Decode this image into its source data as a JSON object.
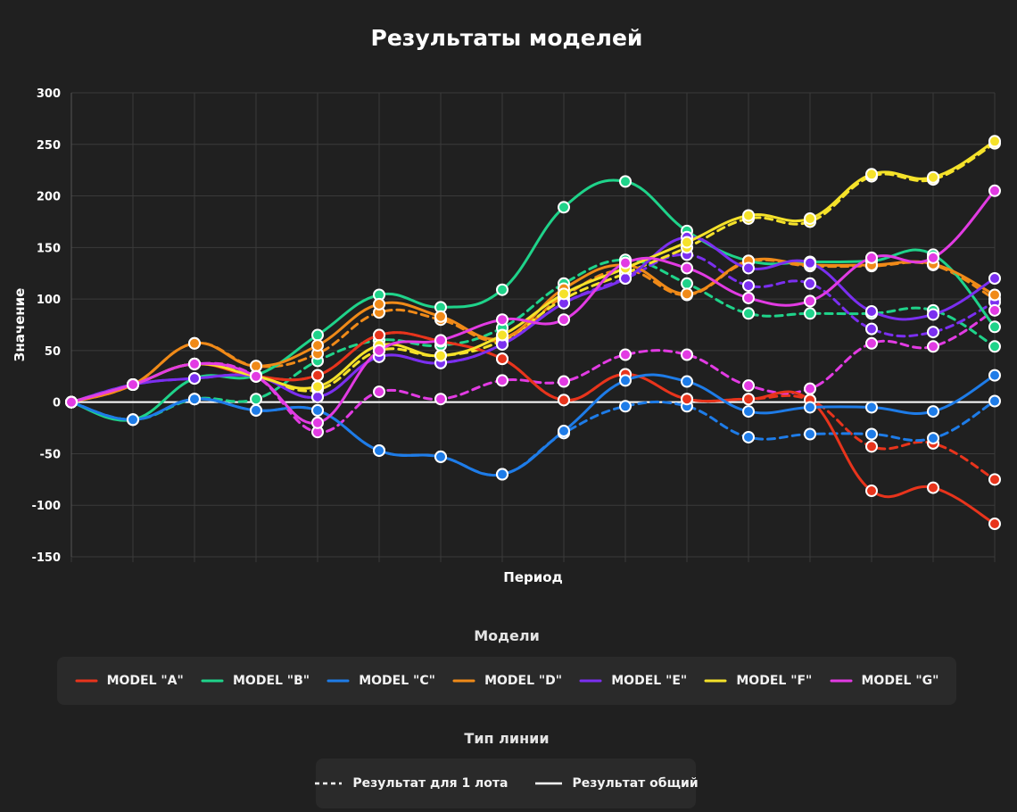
{
  "chart_data": {
    "type": "line",
    "title": "Результаты моделей",
    "xlabel": "Период",
    "ylabel": "Значение",
    "ylim": [
      -150,
      300
    ],
    "yticks": [
      300,
      250,
      200,
      150,
      100,
      50,
      0,
      -50,
      -100,
      -150
    ],
    "x": [
      0,
      1,
      2,
      3,
      4,
      5,
      6,
      7,
      8,
      9,
      10,
      11,
      12,
      13,
      14,
      15
    ],
    "grid": true,
    "series": [
      {
        "name": "MODEL \"A\"",
        "color": "#e8341c",
        "style": "solid",
        "values": [
          0,
          17,
          37,
          25,
          26,
          65,
          59,
          42,
          2,
          27,
          3,
          3,
          2,
          -86,
          -83,
          -118
        ]
      },
      {
        "name": "MODEL \"A\"",
        "color": "#e8341c",
        "style": "dashed",
        "values": [
          0,
          17,
          37,
          25,
          26,
          65,
          59,
          42,
          2,
          27,
          3,
          3,
          2,
          -43,
          -40,
          -75
        ]
      },
      {
        "name": "MODEL \"B\"",
        "color": "#1fd38a",
        "style": "solid",
        "values": [
          0,
          -17,
          23,
          26,
          65,
          104,
          92,
          109,
          189,
          214,
          166,
          137,
          136,
          137,
          143,
          73
        ]
      },
      {
        "name": "MODEL \"B\"",
        "color": "#1fd38a",
        "style": "dashed",
        "values": [
          0,
          -17,
          3,
          3,
          40,
          60,
          55,
          72,
          115,
          138,
          115,
          86,
          86,
          86,
          89,
          54
        ]
      },
      {
        "name": "MODEL \"C\"",
        "color": "#1e7ce8",
        "style": "solid",
        "values": [
          0,
          -17,
          3,
          -8,
          -8,
          -47,
          -53,
          -70,
          -28,
          21,
          20,
          -9,
          -5,
          -5,
          -9,
          26
        ]
      },
      {
        "name": "MODEL \"C\"",
        "color": "#1e7ce8",
        "style": "dashed",
        "values": [
          0,
          -17,
          3,
          -8,
          -8,
          -47,
          -53,
          -70,
          -30,
          -4,
          -4,
          -34,
          -31,
          -31,
          -35,
          1
        ]
      },
      {
        "name": "MODEL \"D\"",
        "color": "#f08a18",
        "style": "solid",
        "values": [
          0,
          17,
          57,
          35,
          55,
          95,
          83,
          62,
          110,
          133,
          105,
          137,
          133,
          133,
          134,
          104
        ]
      },
      {
        "name": "MODEL \"D\"",
        "color": "#f08a18",
        "style": "dashed",
        "values": [
          0,
          17,
          57,
          35,
          47,
          87,
          80,
          60,
          103,
          128,
          104,
          136,
          132,
          132,
          133,
          100
        ]
      },
      {
        "name": "MODEL \"E\"",
        "color": "#7b2ff0",
        "style": "solid",
        "values": [
          0,
          17,
          23,
          25,
          5,
          44,
          38,
          56,
          96,
          120,
          160,
          130,
          135,
          88,
          85,
          120
        ]
      },
      {
        "name": "MODEL \"E\"",
        "color": "#7b2ff0",
        "style": "dashed",
        "values": [
          0,
          17,
          23,
          25,
          5,
          44,
          38,
          56,
          96,
          120,
          143,
          113,
          115,
          71,
          68,
          97
        ]
      },
      {
        "name": "MODEL \"F\"",
        "color": "#f5e22a",
        "style": "solid",
        "values": [
          0,
          17,
          37,
          25,
          15,
          55,
          45,
          65,
          105,
          130,
          155,
          181,
          178,
          221,
          218,
          253
        ]
      },
      {
        "name": "MODEL \"F\"",
        "color": "#f5e22a",
        "style": "dashed",
        "values": [
          0,
          17,
          37,
          25,
          12,
          50,
          45,
          60,
          100,
          125,
          150,
          178,
          175,
          219,
          216,
          251
        ]
      },
      {
        "name": "MODEL \"G\"",
        "color": "#e23be3",
        "style": "solid",
        "values": [
          0,
          17,
          37,
          25,
          -20,
          50,
          60,
          80,
          80,
          135,
          130,
          101,
          98,
          140,
          140,
          205
        ]
      },
      {
        "name": "MODEL \"G\"",
        "color": "#e23be3",
        "style": "dashed",
        "values": [
          0,
          17,
          37,
          25,
          -29,
          10,
          3,
          21,
          20,
          46,
          46,
          16,
          13,
          57,
          54,
          89
        ]
      }
    ],
    "zero_line": {
      "color": "#ffffff",
      "value": 0
    }
  },
  "legend": {
    "models_title": "Модели",
    "models": [
      {
        "label": "MODEL \"A\"",
        "color": "#e8341c"
      },
      {
        "label": "MODEL \"B\"",
        "color": "#1fd38a"
      },
      {
        "label": "MODEL \"C\"",
        "color": "#1e7ce8"
      },
      {
        "label": "MODEL \"D\"",
        "color": "#f08a18"
      },
      {
        "label": "MODEL \"E\"",
        "color": "#7b2ff0"
      },
      {
        "label": "MODEL \"F\"",
        "color": "#f5e22a"
      },
      {
        "label": "MODEL \"G\"",
        "color": "#e23be3"
      }
    ],
    "line_types_title": "Тип линии",
    "line_types": [
      {
        "label": "Результат для 1 лота",
        "style": "dashed"
      },
      {
        "label": "Результат общий",
        "style": "solid"
      }
    ]
  }
}
